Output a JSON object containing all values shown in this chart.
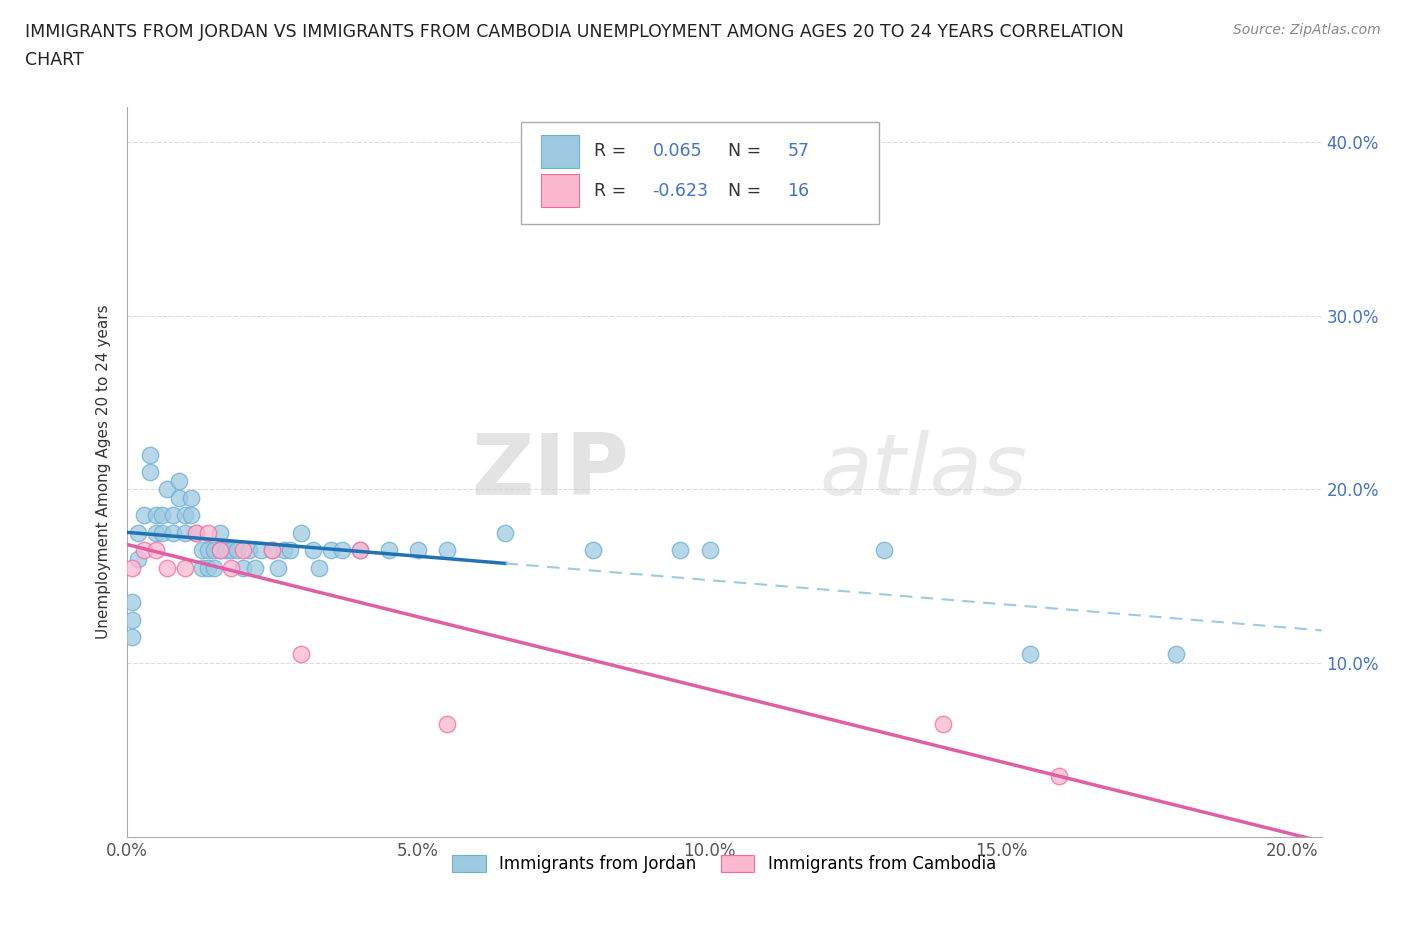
{
  "title_line1": "IMMIGRANTS FROM JORDAN VS IMMIGRANTS FROM CAMBODIA UNEMPLOYMENT AMONG AGES 20 TO 24 YEARS CORRELATION",
  "title_line2": "CHART",
  "source_text": "Source: ZipAtlas.com",
  "ylabel": "Unemployment Among Ages 20 to 24 years",
  "xlim": [
    0.0,
    0.205
  ],
  "ylim": [
    0.0,
    0.42
  ],
  "xticks": [
    0.0,
    0.05,
    0.1,
    0.15,
    0.2
  ],
  "yticks": [
    0.1,
    0.2,
    0.3,
    0.4
  ],
  "xtick_labels": [
    "0.0%",
    "5.0%",
    "10.0%",
    "15.0%",
    "20.0%"
  ],
  "ytick_labels": [
    "10.0%",
    "20.0%",
    "30.0%",
    "40.0%"
  ],
  "watermark_zip": "ZIP",
  "watermark_atlas": "atlas",
  "jordan_color": "#9ecae1",
  "cambodia_color": "#fcb8cf",
  "jordan_edge_color": "#6baed6",
  "cambodia_edge_color": "#f768a1",
  "jordan_line_color": "#2171b5",
  "jordan_dash_color": "#9ecae1",
  "cambodia_line_color": "#e05fa4",
  "jordan_R": "0.065",
  "jordan_N": "57",
  "cambodia_R": "-0.623",
  "cambodia_N": "16",
  "jordan_x": [
    0.001,
    0.001,
    0.001,
    0.002,
    0.002,
    0.003,
    0.004,
    0.004,
    0.005,
    0.005,
    0.006,
    0.006,
    0.007,
    0.008,
    0.008,
    0.009,
    0.009,
    0.01,
    0.01,
    0.011,
    0.011,
    0.012,
    0.013,
    0.013,
    0.014,
    0.014,
    0.015,
    0.015,
    0.016,
    0.016,
    0.017,
    0.018,
    0.019,
    0.02,
    0.021,
    0.022,
    0.023,
    0.025,
    0.026,
    0.027,
    0.028,
    0.03,
    0.032,
    0.033,
    0.035,
    0.037,
    0.04,
    0.045,
    0.05,
    0.055,
    0.065,
    0.08,
    0.095,
    0.1,
    0.13,
    0.155,
    0.18
  ],
  "jordan_y": [
    0.115,
    0.125,
    0.135,
    0.16,
    0.175,
    0.185,
    0.21,
    0.22,
    0.175,
    0.185,
    0.175,
    0.185,
    0.2,
    0.175,
    0.185,
    0.195,
    0.205,
    0.175,
    0.185,
    0.185,
    0.195,
    0.175,
    0.155,
    0.165,
    0.155,
    0.165,
    0.155,
    0.165,
    0.165,
    0.175,
    0.165,
    0.165,
    0.165,
    0.155,
    0.165,
    0.155,
    0.165,
    0.165,
    0.155,
    0.165,
    0.165,
    0.175,
    0.165,
    0.155,
    0.165,
    0.165,
    0.165,
    0.165,
    0.165,
    0.165,
    0.175,
    0.165,
    0.165,
    0.165,
    0.165,
    0.105,
    0.105
  ],
  "cambodia_x": [
    0.001,
    0.003,
    0.005,
    0.007,
    0.01,
    0.012,
    0.014,
    0.016,
    0.018,
    0.02,
    0.025,
    0.03,
    0.04,
    0.055,
    0.14,
    0.16
  ],
  "cambodia_y": [
    0.155,
    0.165,
    0.165,
    0.155,
    0.155,
    0.175,
    0.175,
    0.165,
    0.155,
    0.165,
    0.165,
    0.105,
    0.165,
    0.065,
    0.065,
    0.035
  ],
  "legend_label_jordan": "Immigrants from Jordan",
  "legend_label_cambodia": "Immigrants from Cambodia",
  "background_color": "#ffffff",
  "grid_color": "#cccccc",
  "grid_dash_color": "#bbbbbb"
}
